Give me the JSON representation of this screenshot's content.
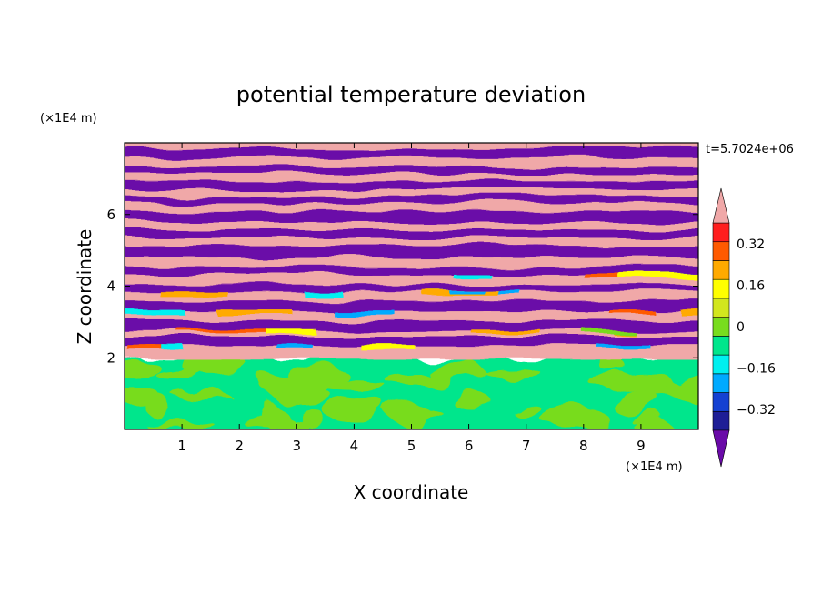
{
  "chart_data": {
    "type": "heatmap",
    "title": "potential temperature deviation",
    "xlabel": "X coordinate",
    "ylabel": "Z coordinate",
    "x_unit": "(×1E4 m)",
    "y_unit": "(×1E4 m)",
    "time_label": "t=5.7024e+06",
    "xlim": [
      0,
      10
    ],
    "ylim": [
      0,
      8
    ],
    "x_ticks": [
      1,
      2,
      3,
      4,
      5,
      6,
      7,
      8,
      9
    ],
    "y_ticks": [
      2,
      4,
      6
    ],
    "colorbar": {
      "levels": [
        -0.48,
        -0.4,
        -0.32,
        -0.24,
        -0.16,
        -0.08,
        0,
        0.08,
        0.16,
        0.24,
        0.32,
        0.4,
        0.48
      ],
      "tick_labels": [
        "0.32",
        "0.16",
        "0",
        "−0.16",
        "−0.32"
      ],
      "tick_values": [
        0.32,
        0.16,
        0,
        -0.16,
        -0.32
      ],
      "colors": [
        "#6a0aa8",
        "#1e1e96",
        "#1441d2",
        "#00aaff",
        "#00f0f0",
        "#00e68c",
        "#78dc1e",
        "#d2e61e",
        "#ffff00",
        "#ffaa00",
        "#ff5a00",
        "#ff1e1e",
        "#f0a8a8"
      ],
      "extend": "both"
    },
    "structure": {
      "lower_layer_z_top": 2,
      "lower_layer_values": [
        0,
        0.08
      ],
      "upper_layer": "horizontal banded layers alternating strongly negative and strongly positive deviations"
    }
  }
}
